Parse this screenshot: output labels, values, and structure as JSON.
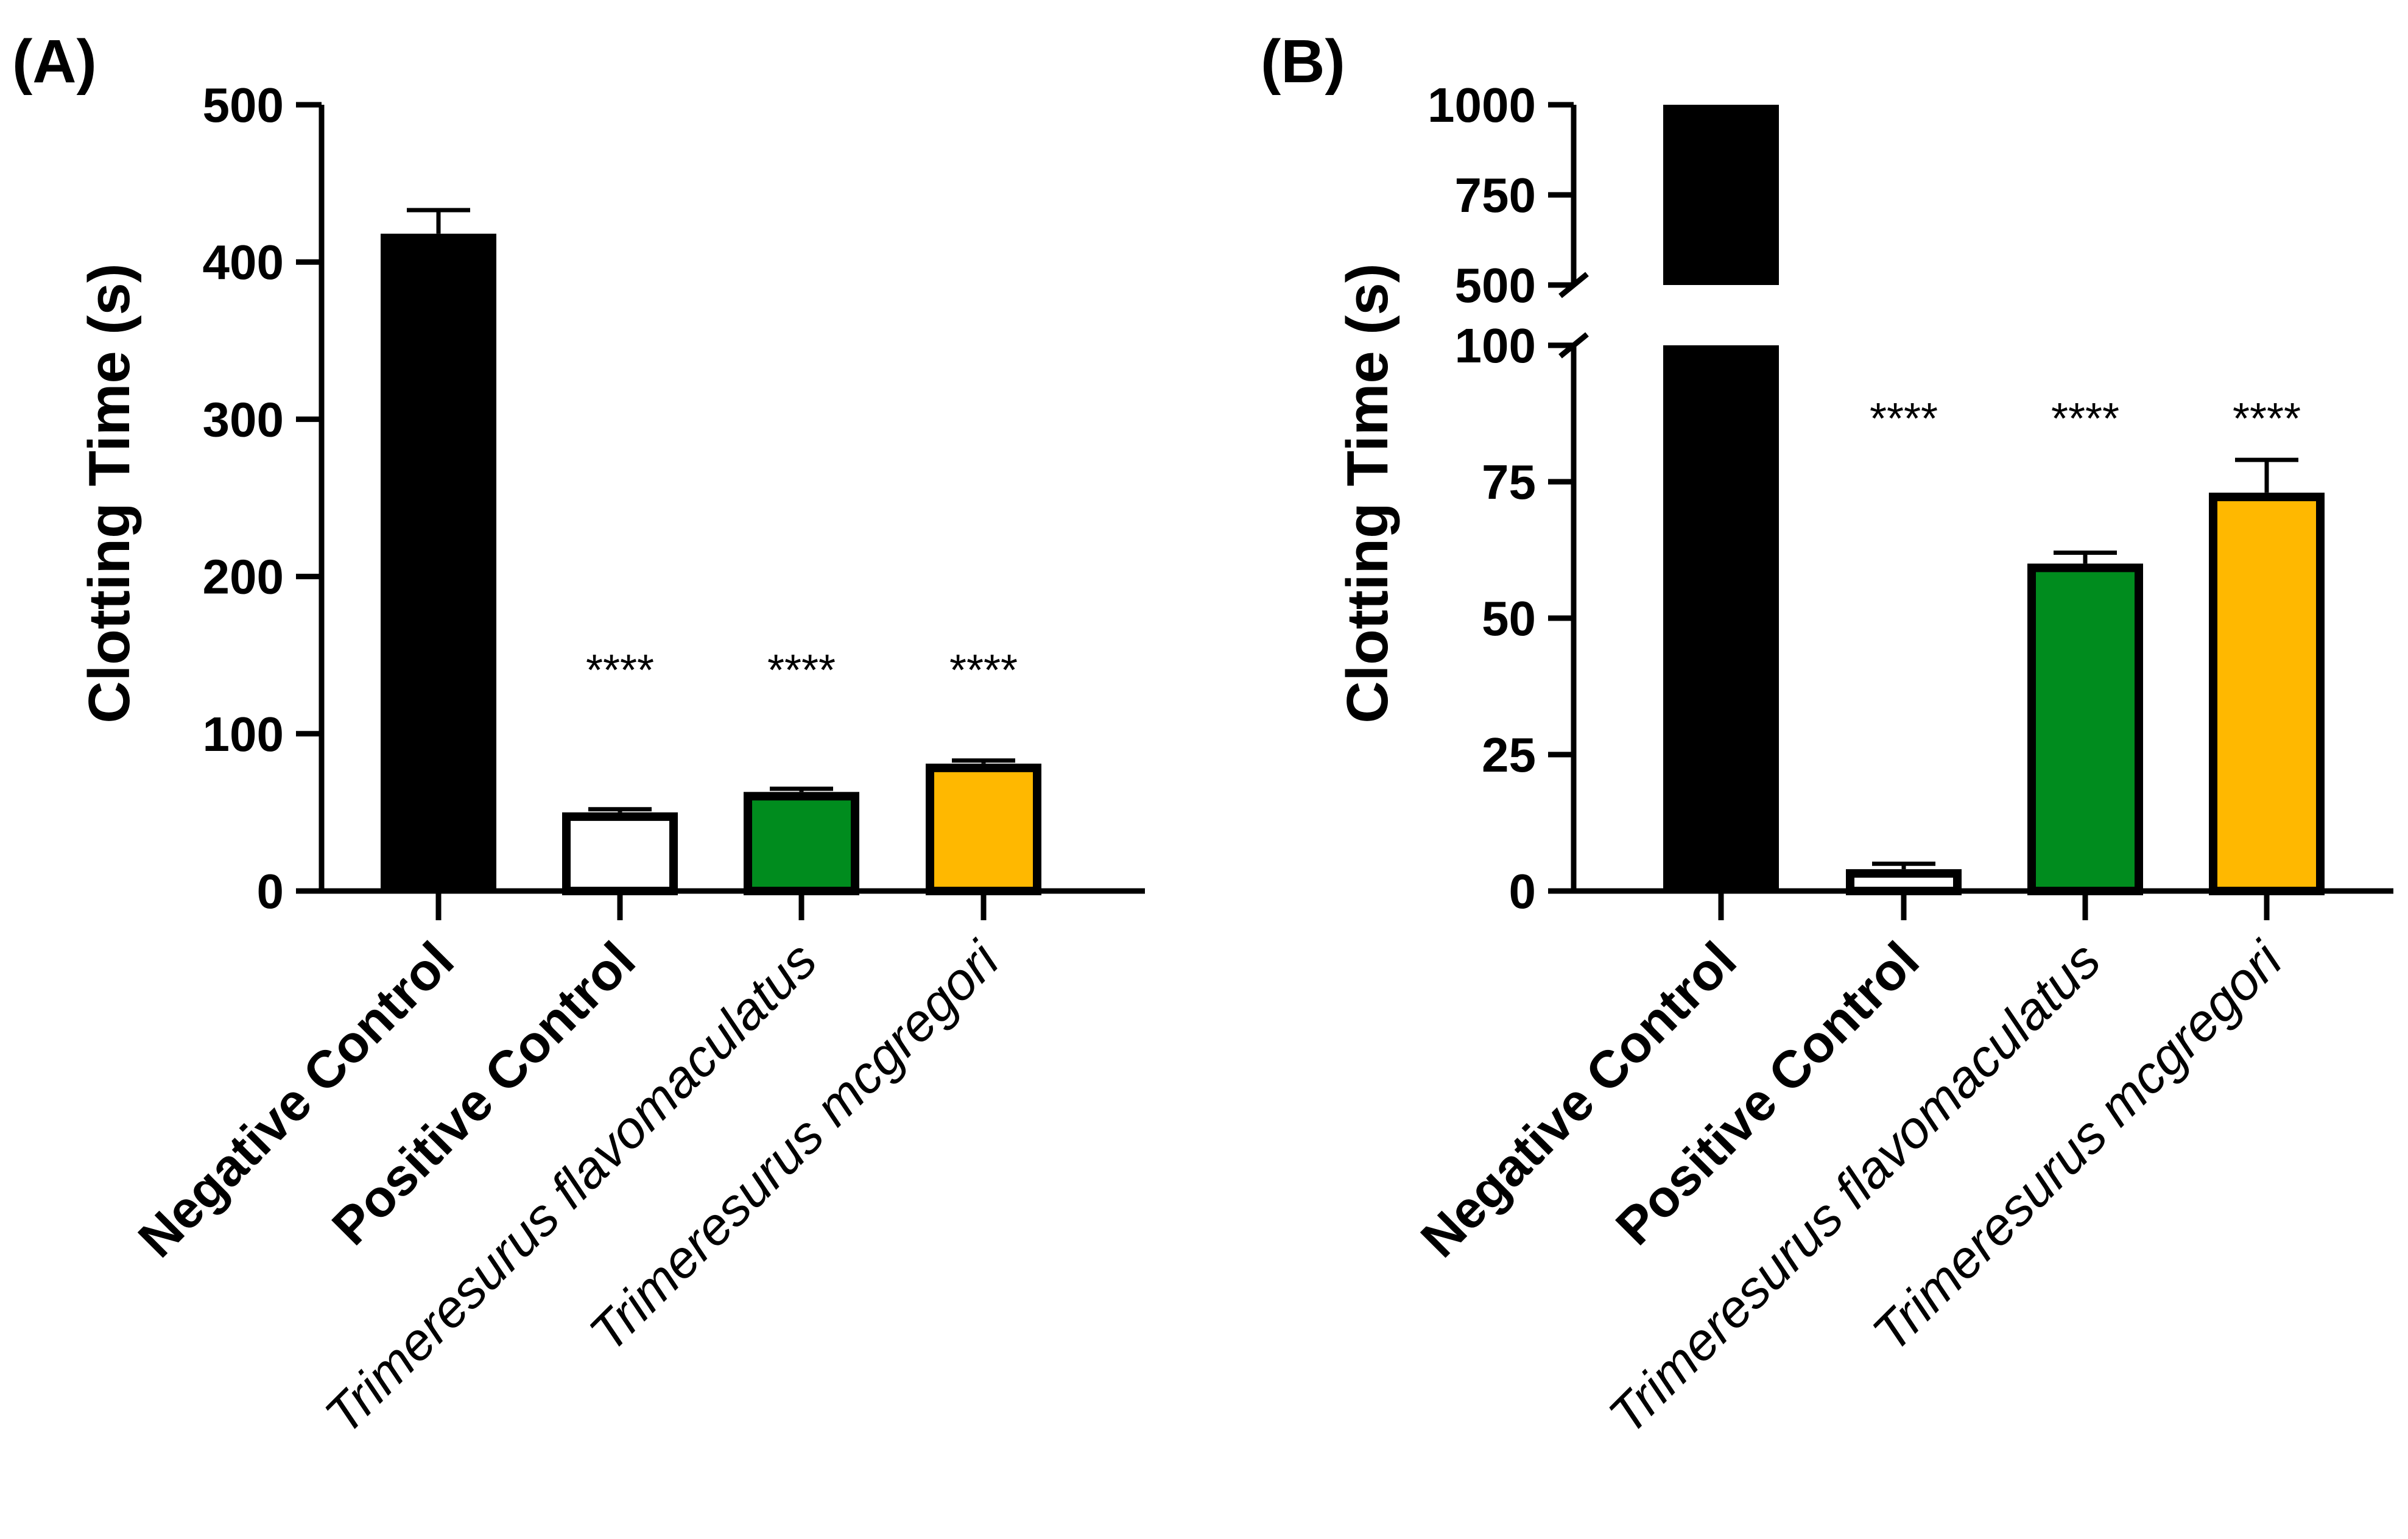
{
  "chart_data": [
    {
      "panel": "(A)",
      "type": "bar",
      "ylabel": "Clotting Time (s)",
      "ylim": [
        0,
        500
      ],
      "yticks": [
        0,
        100,
        200,
        300,
        400,
        500
      ],
      "ytick_labels": [
        "0",
        "100",
        "200",
        "300",
        "400",
        "500"
      ],
      "axis_break": null,
      "categories": [
        "Negative Control",
        "Positive Control",
        "Trimeresurus flavomaculatus",
        "Trimeresurus mcgregori"
      ],
      "category_styles": [
        "bold",
        "bold",
        "italic",
        "italic"
      ],
      "values": [
        418,
        50,
        63,
        81
      ],
      "errors": [
        15,
        2,
        2,
        2
      ],
      "significance": [
        "",
        "****",
        "****",
        "****"
      ],
      "colors": [
        "#000000",
        "#ffffff",
        "#008c1e",
        "#ffb800"
      ]
    },
    {
      "panel": "(B)",
      "type": "bar",
      "ylabel": "Clotting Time (s)",
      "ylim": [
        0,
        1000
      ],
      "yticks": [
        0,
        25,
        50,
        75,
        100,
        500,
        750,
        1000
      ],
      "ytick_labels": [
        "0",
        "25",
        "50",
        "75",
        "100",
        "500",
        "750",
        "1000"
      ],
      "axis_break": [
        100,
        500
      ],
      "categories": [
        "Negative Control",
        "Positive Control",
        "Trimeresurus flavomaculatus",
        "Trimeresurus mcgregori"
      ],
      "category_styles": [
        "bold",
        "bold",
        "italic",
        "italic"
      ],
      "values": [
        1000,
        4,
        60,
        73
      ],
      "errors": [
        0,
        1,
        2,
        6
      ],
      "significance": [
        "",
        "****",
        "****",
        "****"
      ],
      "colors": [
        "#000000",
        "#ffffff",
        "#008c1e",
        "#ffb800"
      ]
    }
  ]
}
